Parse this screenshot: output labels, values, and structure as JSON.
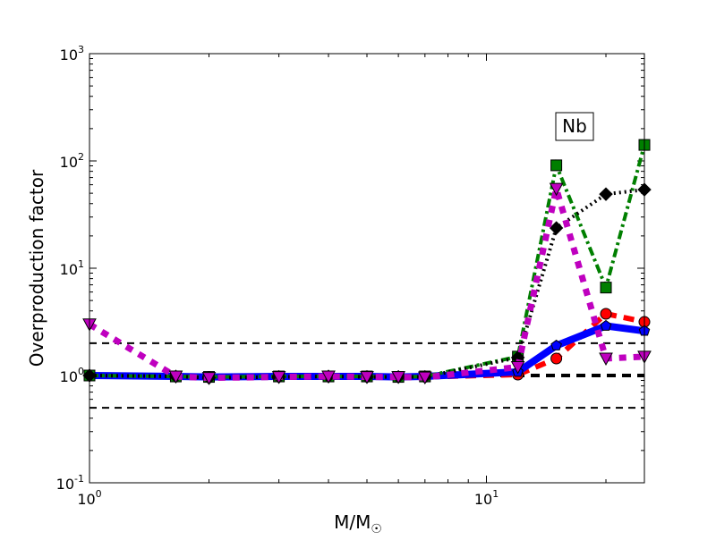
{
  "chart_data": {
    "type": "line",
    "title": "",
    "annotation": "Nb",
    "xlabel": "M/M",
    "xlabel_sub": "☉",
    "ylabel": "Overproduction factor",
    "xscale": "log",
    "yscale": "log",
    "xlim": [
      1,
      25
    ],
    "ylim": [
      0.1,
      1000
    ],
    "x_ticks": [
      {
        "value": 1,
        "base": "10",
        "exp": "0"
      },
      {
        "value": 10,
        "base": "10",
        "exp": "1"
      }
    ],
    "y_ticks": [
      {
        "value": 0.1,
        "base": "10",
        "exp": "-1"
      },
      {
        "value": 1,
        "base": "10",
        "exp": "0"
      },
      {
        "value": 10,
        "base": "10",
        "exp": "1"
      },
      {
        "value": 100,
        "base": "10",
        "exp": "2"
      },
      {
        "value": 1000,
        "base": "10",
        "exp": "3"
      }
    ],
    "reference_lines": [
      {
        "y": 2,
        "style": "dashed"
      },
      {
        "y": 1,
        "style": "dashed-thick"
      },
      {
        "y": 0.5,
        "style": "dashed"
      }
    ],
    "x": [
      1,
      1.65,
      2,
      3,
      4,
      5,
      6,
      7,
      12,
      15,
      20,
      25
    ],
    "series": [
      {
        "name": "red",
        "color": "#ff0000",
        "dash": "dashed",
        "marker": "circle",
        "values": [
          1.0,
          0.98,
          0.97,
          0.98,
          0.98,
          0.98,
          0.97,
          0.97,
          1.02,
          1.44,
          3.76,
          3.16
        ]
      },
      {
        "name": "blue",
        "color": "#0000ff",
        "dash": "solid",
        "marker": "pentagon",
        "values": [
          1.0,
          0.98,
          0.97,
          0.98,
          0.98,
          0.98,
          0.97,
          0.98,
          1.08,
          1.9,
          2.9,
          2.6
        ]
      },
      {
        "name": "green",
        "color": "#007f00",
        "dash": "dashdot",
        "marker": "square",
        "values": [
          1.0,
          0.98,
          0.97,
          0.98,
          0.98,
          0.98,
          0.97,
          0.98,
          1.5,
          91,
          6.6,
          141
        ]
      },
      {
        "name": "black",
        "color": "#000000",
        "dash": "dotted",
        "marker": "diamond",
        "values": [
          1.0,
          0.98,
          0.95,
          0.97,
          0.98,
          0.97,
          0.97,
          0.97,
          1.47,
          23.7,
          49,
          54
        ]
      },
      {
        "name": "magenta",
        "color": "#bf00bf",
        "dash": "dotted-thick",
        "marker": "triangle-down",
        "values": [
          3.0,
          0.98,
          0.95,
          0.97,
          0.98,
          0.97,
          0.97,
          0.96,
          1.2,
          55,
          1.44,
          1.5
        ]
      }
    ]
  }
}
